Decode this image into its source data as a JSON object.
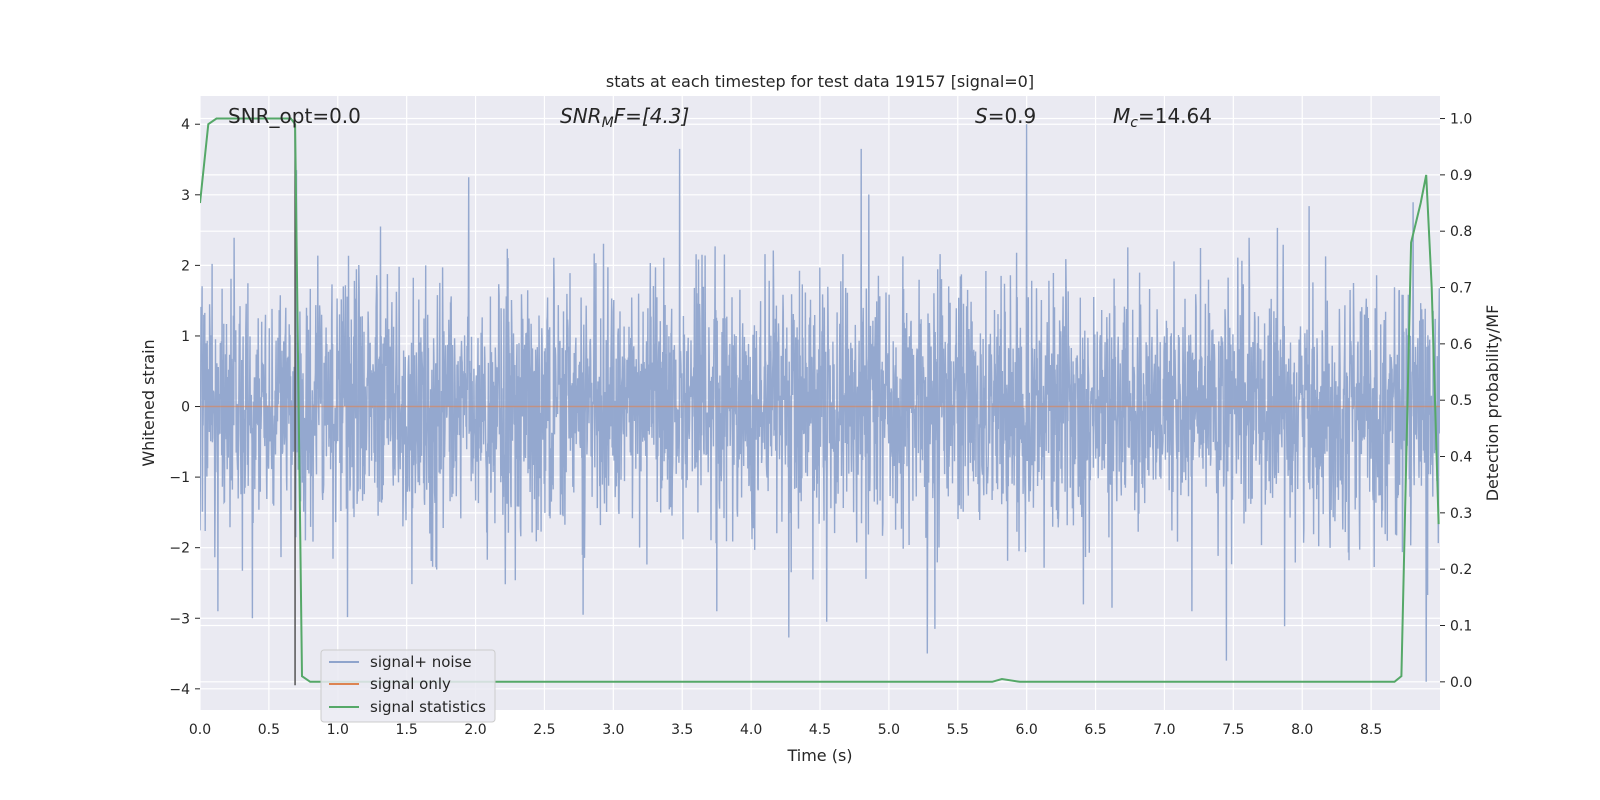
{
  "chart_data": {
    "type": "line",
    "title": "stats at each timestep for test data 19157 [signal=0]",
    "xlabel": "Time (s)",
    "ylabel": "Whitened strain",
    "ylabel_right": "Detection probability/MF",
    "xlim": [
      0.0,
      9.0
    ],
    "ylim": [
      -4.3,
      4.4
    ],
    "ylim_right": [
      -0.05,
      1.04
    ],
    "x_ticks": [
      "0.0",
      "0.5",
      "1.0",
      "1.5",
      "2.0",
      "2.5",
      "3.0",
      "3.5",
      "4.0",
      "4.5",
      "5.0",
      "5.5",
      "6.0",
      "6.5",
      "7.0",
      "7.5",
      "8.0",
      "8.5"
    ],
    "y_ticks": [
      "4",
      "3",
      "2",
      "1",
      "0",
      "−1",
      "−2",
      "−3",
      "−4"
    ],
    "y_ticks_right": [
      "1.0",
      "0.9",
      "0.8",
      "0.7",
      "0.6",
      "0.5",
      "0.4",
      "0.3",
      "0.2",
      "0.1",
      "0.0"
    ],
    "grid": true,
    "legend_position": "lower-left",
    "annotations": {
      "snr_opt": "SNR_opt=0.0",
      "snr_mf_base": "SNR",
      "snr_mf_sub": "M",
      "snr_mf_rest": "F=[4.3]",
      "s_italic": "S",
      "s_rest": "=0.9",
      "mc_base": "M",
      "mc_sub": "c",
      "mc_rest": "=14.64"
    },
    "series": [
      {
        "name": "signal+ noise",
        "color": "#8fa4cc",
        "axis": "left",
        "noise_std": 0.85,
        "range": [
          -4.0,
          4.0
        ],
        "spikes": [
          [
            0.7,
            3.35
          ],
          [
            1.95,
            3.25
          ],
          [
            3.48,
            3.65
          ],
          [
            4.8,
            3.65
          ],
          [
            6.0,
            4.0
          ],
          [
            5.28,
            -3.5
          ],
          [
            7.45,
            -3.6
          ],
          [
            8.9,
            -3.9
          ],
          [
            4.55,
            -3.05
          ],
          [
            0.38,
            -3.0
          ],
          [
            0.13,
            -2.9
          ],
          [
            2.78,
            -2.95
          ],
          [
            3.75,
            -2.9
          ],
          [
            6.62,
            -2.85
          ],
          [
            7.2,
            -2.9
          ]
        ]
      },
      {
        "name": "signal only",
        "color": "#dd8452",
        "axis": "left",
        "x": [
          0.0,
          9.0
        ],
        "y": [
          0.0,
          0.0
        ]
      },
      {
        "name": "signal statistics",
        "color": "#55a868",
        "axis": "right",
        "x": [
          0.0,
          0.06,
          0.12,
          0.2,
          0.4,
          0.6,
          0.66,
          0.69,
          0.74,
          0.8,
          1.0,
          2.0,
          3.0,
          4.0,
          5.0,
          5.5,
          5.75,
          5.82,
          5.95,
          6.5,
          7.0,
          8.0,
          8.5,
          8.67,
          8.72,
          8.79,
          8.86,
          8.9,
          8.94,
          8.99
        ],
        "y": [
          0.85,
          0.99,
          1.0,
          1.0,
          1.0,
          1.0,
          1.0,
          0.99,
          0.01,
          0.0,
          0.0,
          0.0,
          0.0,
          0.0,
          0.0,
          0.0,
          0.0,
          0.005,
          0.0,
          0.0,
          0.0,
          0.0,
          0.0,
          0.0,
          0.01,
          0.78,
          0.85,
          0.9,
          0.7,
          0.28
        ]
      }
    ],
    "vline": {
      "x": 0.69,
      "y_from": -3.95,
      "y_to": 4.0,
      "color": "#555555"
    }
  }
}
